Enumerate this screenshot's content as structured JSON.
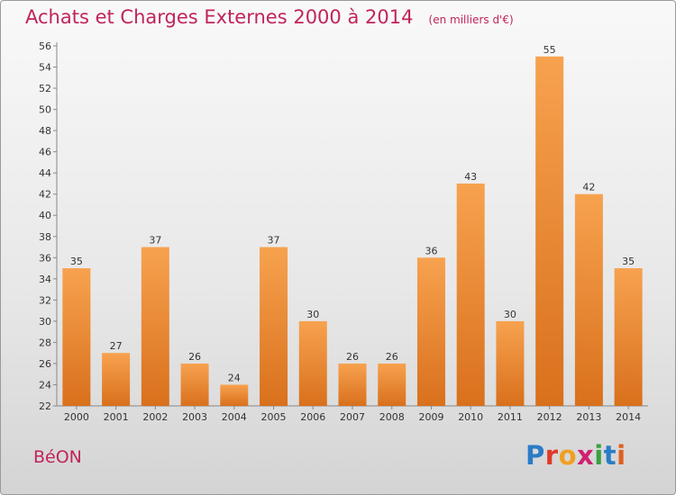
{
  "header": {
    "title": "Achats et Charges Externes 2000 à 2014",
    "unit": "(en milliers d'€)"
  },
  "footer": {
    "place": "BéON",
    "logo": {
      "letters": [
        "P",
        "r",
        "o",
        "x",
        "i",
        "t",
        "i"
      ],
      "colors": [
        "#2a7cc7",
        "#e03a2a",
        "#f0a020",
        "#d02070",
        "#3aa040",
        "#2a7cc7",
        "#e06020"
      ]
    }
  },
  "colors": {
    "bar_top": "#f7a24f",
    "bar_bottom": "#d9701c",
    "title": "#c0245c",
    "axis": "#888888"
  },
  "chart_data": {
    "type": "bar",
    "categories": [
      "2000",
      "2001",
      "2002",
      "2003",
      "2004",
      "2005",
      "2006",
      "2007",
      "2008",
      "2009",
      "2010",
      "2011",
      "2012",
      "2013",
      "2014"
    ],
    "values": [
      35,
      27,
      37,
      26,
      24,
      37,
      30,
      26,
      26,
      36,
      43,
      30,
      55,
      42,
      35
    ],
    "ylim": [
      22,
      56
    ],
    "yticks": [
      22,
      24,
      26,
      28,
      30,
      32,
      34,
      36,
      38,
      40,
      42,
      44,
      46,
      48,
      50,
      52,
      54,
      56
    ],
    "grid": false,
    "data_labels": true
  }
}
